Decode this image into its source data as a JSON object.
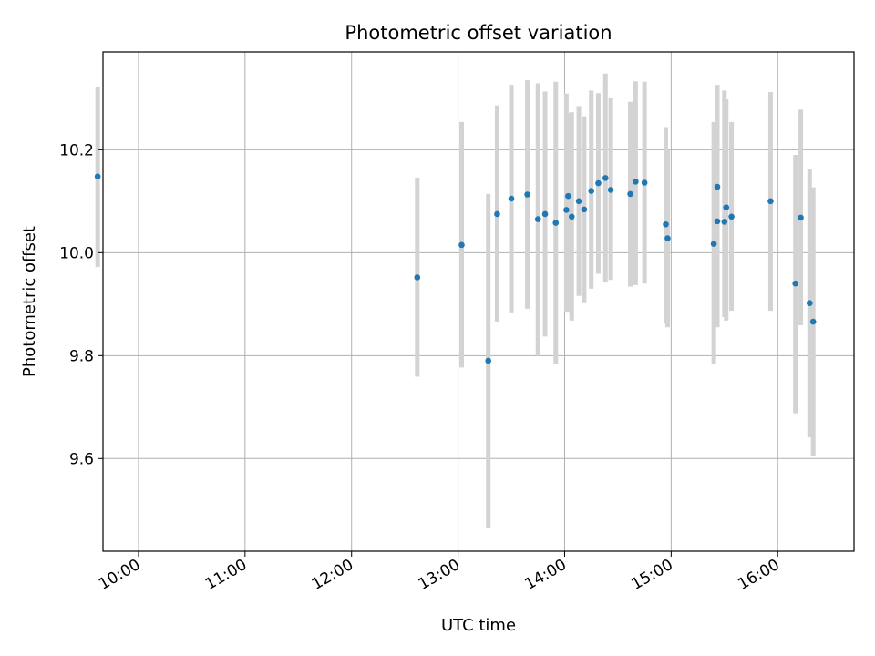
{
  "chart_data": {
    "type": "scatter",
    "title": "Photometric offset variation",
    "xlabel": "UTC time",
    "ylabel": "Photometric offset",
    "x_axis_type": "time",
    "xlim": [
      "09:40",
      "16:43"
    ],
    "ylim": [
      9.42,
      10.39
    ],
    "x_ticks": [
      "10:00",
      "11:00",
      "12:00",
      "13:00",
      "14:00",
      "15:00",
      "16:00"
    ],
    "y_ticks": [
      "9.6",
      "9.8",
      "10.0",
      "10.2"
    ],
    "y_tick_values": [
      9.6,
      9.8,
      10.0,
      10.2
    ],
    "grid": true,
    "legend": false,
    "colors": {
      "points": "#1f77b4",
      "error_bars": "#d3d3d3",
      "grid": "#b0b0b0"
    },
    "points": [
      {
        "x": "09:37",
        "y": 10.148,
        "err_low": 9.972,
        "err_high": 10.322
      },
      {
        "x": "12:37",
        "y": 9.952,
        "err_low": 9.759,
        "err_high": 10.146
      },
      {
        "x": "13:02",
        "y": 10.015,
        "err_low": 9.777,
        "err_high": 10.254
      },
      {
        "x": "13:17",
        "y": 9.79,
        "err_low": 9.465,
        "err_high": 10.114
      },
      {
        "x": "13:22",
        "y": 10.075,
        "err_low": 9.866,
        "err_high": 10.286
      },
      {
        "x": "13:30",
        "y": 10.105,
        "err_low": 9.884,
        "err_high": 10.326
      },
      {
        "x": "13:39",
        "y": 10.113,
        "err_low": 9.891,
        "err_high": 10.335
      },
      {
        "x": "13:45",
        "y": 10.065,
        "err_low": 9.8,
        "err_high": 10.329
      },
      {
        "x": "13:49",
        "y": 10.075,
        "err_low": 9.837,
        "err_high": 10.313
      },
      {
        "x": "13:55",
        "y": 10.058,
        "err_low": 9.783,
        "err_high": 10.332
      },
      {
        "x": "14:01",
        "y": 10.083,
        "err_low": 9.886,
        "err_high": 10.309
      },
      {
        "x": "14:02",
        "y": 10.11,
        "err_low": 9.885,
        "err_high": 10.271
      },
      {
        "x": "14:04",
        "y": 10.07,
        "err_low": 9.868,
        "err_high": 10.273
      },
      {
        "x": "14:08",
        "y": 10.1,
        "err_low": 9.916,
        "err_high": 10.285
      },
      {
        "x": "14:11",
        "y": 10.084,
        "err_low": 9.902,
        "err_high": 10.265
      },
      {
        "x": "14:15",
        "y": 10.12,
        "err_low": 9.93,
        "err_high": 10.315
      },
      {
        "x": "14:19",
        "y": 10.135,
        "err_low": 9.959,
        "err_high": 10.31
      },
      {
        "x": "14:23",
        "y": 10.145,
        "err_low": 9.942,
        "err_high": 10.348
      },
      {
        "x": "14:26",
        "y": 10.122,
        "err_low": 9.947,
        "err_high": 10.3
      },
      {
        "x": "14:37",
        "y": 10.114,
        "err_low": 9.934,
        "err_high": 10.293
      },
      {
        "x": "14:40",
        "y": 10.138,
        "err_low": 9.937,
        "err_high": 10.333
      },
      {
        "x": "14:45",
        "y": 10.136,
        "err_low": 9.94,
        "err_high": 10.332
      },
      {
        "x": "14:57",
        "y": 10.055,
        "err_low": 9.862,
        "err_high": 10.244
      },
      {
        "x": "14:58",
        "y": 10.028,
        "err_low": 9.855,
        "err_high": 10.2
      },
      {
        "x": "15:24",
        "y": 10.017,
        "err_low": 9.783,
        "err_high": 10.254
      },
      {
        "x": "15:26",
        "y": 10.128,
        "err_low": 9.935,
        "err_high": 10.326
      },
      {
        "x": "15:26",
        "y": 10.061,
        "err_low": 9.855,
        "err_high": 10.26
      },
      {
        "x": "15:30",
        "y": 10.06,
        "err_low": 9.875,
        "err_high": 10.315
      },
      {
        "x": "15:31",
        "y": 10.088,
        "err_low": 9.868,
        "err_high": 10.298
      },
      {
        "x": "15:34",
        "y": 10.07,
        "err_low": 9.887,
        "err_high": 10.254
      },
      {
        "x": "15:56",
        "y": 10.1,
        "err_low": 9.887,
        "err_high": 10.312
      },
      {
        "x": "16:10",
        "y": 9.94,
        "err_low": 9.688,
        "err_high": 10.19
      },
      {
        "x": "16:13",
        "y": 10.068,
        "err_low": 9.859,
        "err_high": 10.278
      },
      {
        "x": "16:18",
        "y": 9.902,
        "err_low": 9.641,
        "err_high": 10.163
      },
      {
        "x": "16:20",
        "y": 9.866,
        "err_low": 9.605,
        "err_high": 10.127
      }
    ]
  }
}
